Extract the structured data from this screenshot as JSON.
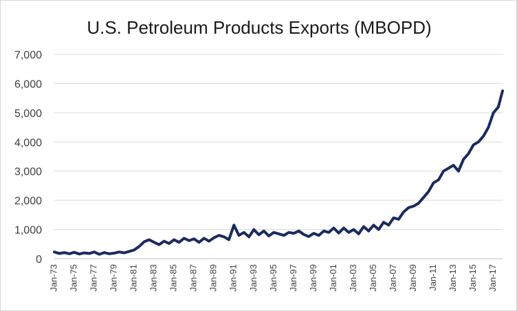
{
  "chart_data": {
    "type": "line",
    "title": "U.S. Petroleum Products Exports (MBOPD)",
    "xlabel": "",
    "ylabel": "",
    "ylim": [
      0,
      7000
    ],
    "yticks": [
      0,
      1000,
      2000,
      3000,
      4000,
      5000,
      6000,
      7000
    ],
    "ytick_labels": [
      "0",
      "1,000",
      "2,000",
      "3,000",
      "4,000",
      "5,000",
      "6,000",
      "7,000"
    ],
    "xlim": [
      1973.0,
      2017.917
    ],
    "xtick_values": [
      1973,
      1975,
      1977,
      1979,
      1981,
      1983,
      1985,
      1987,
      1989,
      1991,
      1993,
      1995,
      1997,
      1999,
      2001,
      2003,
      2005,
      2007,
      2009,
      2011,
      2013,
      2015,
      2017
    ],
    "xtick_labels": [
      "Jan-73",
      "Jan-75",
      "Jan-77",
      "Jan-79",
      "Jan-81",
      "Jan-83",
      "Jan-85",
      "Jan-87",
      "Jan-89",
      "Jan-91",
      "Jan-93",
      "Jan-95",
      "Jan-97",
      "Jan-99",
      "Jan-01",
      "Jan-03",
      "Jan-05",
      "Jan-07",
      "Jan-09",
      "Jan-11",
      "Jan-13",
      "Jan-15",
      "Jan-17"
    ],
    "grid": true,
    "legend": "none",
    "series": [
      {
        "name": "U.S. Petroleum Products Exports",
        "color": "#1b2a5e",
        "x": [
          1973.0,
          1973.5,
          1974.0,
          1974.5,
          1975.0,
          1975.5,
          1976.0,
          1976.5,
          1977.0,
          1977.5,
          1978.0,
          1978.5,
          1979.0,
          1979.5,
          1980.0,
          1980.5,
          1981.0,
          1981.5,
          1982.0,
          1982.5,
          1983.0,
          1983.5,
          1984.0,
          1984.5,
          1985.0,
          1985.5,
          1986.0,
          1986.5,
          1987.0,
          1987.5,
          1988.0,
          1988.5,
          1989.0,
          1989.5,
          1990.0,
          1990.5,
          1991.0,
          1991.5,
          1992.0,
          1992.5,
          1993.0,
          1993.5,
          1994.0,
          1994.5,
          1995.0,
          1995.5,
          1996.0,
          1996.5,
          1997.0,
          1997.5,
          1998.0,
          1998.5,
          1999.0,
          1999.5,
          2000.0,
          2000.5,
          2001.0,
          2001.5,
          2002.0,
          2002.5,
          2003.0,
          2003.5,
          2004.0,
          2004.5,
          2005.0,
          2005.5,
          2006.0,
          2006.5,
          2007.0,
          2007.5,
          2008.0,
          2008.5,
          2009.0,
          2009.5,
          2010.0,
          2010.5,
          2011.0,
          2011.5,
          2012.0,
          2012.5,
          2013.0,
          2013.5,
          2014.0,
          2014.5,
          2015.0,
          2015.5,
          2016.0,
          2016.5,
          2017.0,
          2017.5,
          2017.917
        ],
        "values": [
          230,
          180,
          210,
          170,
          220,
          160,
          200,
          180,
          230,
          150,
          210,
          170,
          190,
          230,
          200,
          250,
          300,
          420,
          580,
          650,
          560,
          480,
          600,
          520,
          650,
          560,
          700,
          620,
          680,
          560,
          700,
          600,
          720,
          800,
          750,
          650,
          1150,
          800,
          900,
          750,
          1000,
          820,
          950,
          780,
          900,
          850,
          800,
          900,
          870,
          950,
          830,
          760,
          870,
          800,
          950,
          900,
          1050,
          880,
          1050,
          900,
          1000,
          850,
          1100,
          950,
          1150,
          1000,
          1250,
          1150,
          1400,
          1350,
          1600,
          1750,
          1800,
          1900,
          2100,
          2300,
          2600,
          2700,
          3000,
          3100,
          3200,
          3000,
          3400,
          3600,
          3900,
          4000,
          4200,
          4500,
          5000,
          5200,
          5750
        ]
      }
    ]
  }
}
